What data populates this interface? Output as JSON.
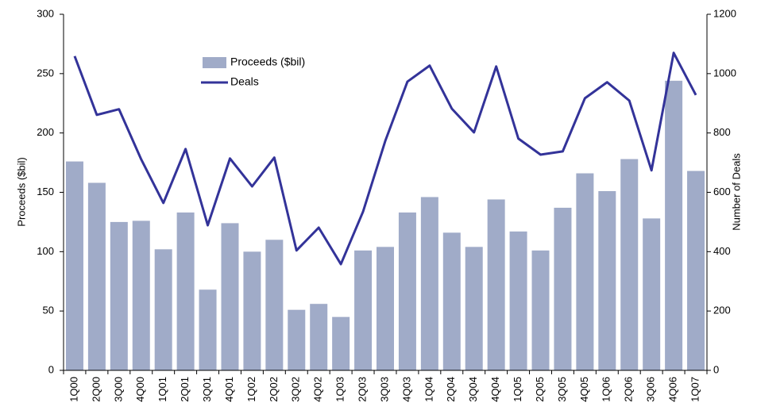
{
  "chart_data": {
    "type": "bar_line",
    "categories": [
      "1Q00",
      "2Q00",
      "3Q00",
      "4Q00",
      "1Q01",
      "2Q01",
      "3Q01",
      "4Q01",
      "1Q02",
      "2Q02",
      "3Q02",
      "4Q02",
      "1Q03",
      "2Q03",
      "3Q03",
      "4Q03",
      "1Q04",
      "2Q04",
      "3Q04",
      "4Q04",
      "1Q05",
      "2Q05",
      "3Q05",
      "4Q05",
      "1Q06",
      "2Q06",
      "3Q06",
      "4Q06",
      "1Q07"
    ],
    "series": [
      {
        "name": "Proceeds ($bil)",
        "type": "bar",
        "color": "#a0abc8",
        "values": [
          176,
          158,
          125,
          126,
          102,
          133,
          68,
          124,
          100,
          110,
          51,
          56,
          45,
          101,
          104,
          133,
          146,
          116,
          104,
          144,
          117,
          101,
          137,
          166,
          151,
          178,
          128,
          244,
          168
        ]
      },
      {
        "name": "Deals",
        "type": "line",
        "axis": "y2",
        "color": "#333399",
        "values": [
          1059,
          861,
          880,
          711,
          564,
          746,
          489,
          714,
          620,
          717,
          404,
          481,
          358,
          535,
          773,
          973,
          1027,
          882,
          802,
          1024,
          781,
          727,
          738,
          917,
          971,
          909,
          674,
          1070,
          928
        ]
      }
    ],
    "ylabel": "Proceeds ($bil)",
    "y2label": "Number of Deals",
    "ylim": [
      0,
      300
    ],
    "yticks": [
      0,
      50,
      100,
      150,
      200,
      250,
      300
    ],
    "y2lim": [
      0,
      1200
    ],
    "y2ticks": [
      0,
      200,
      400,
      600,
      800,
      1000,
      1200
    ],
    "legend": "top-left"
  }
}
